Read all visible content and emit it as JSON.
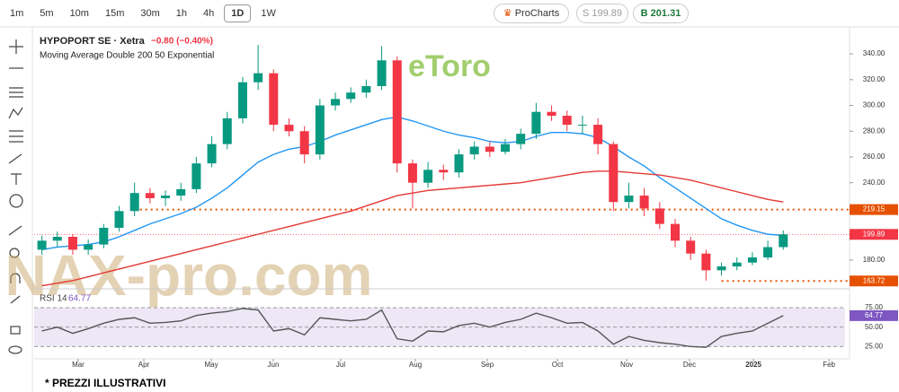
{
  "toolbar": {
    "intervals": [
      "1m",
      "5m",
      "10m",
      "15m",
      "30m",
      "1h",
      "4h",
      "1D",
      "1W"
    ],
    "active": 7,
    "procharts": "ProCharts",
    "sell": "S 199.89",
    "buy": "B 201.31"
  },
  "watermarks": [
    "eToro",
    "NAX-pro.com"
  ],
  "footer": "* PREZZI ILLUSTRATIVI",
  "chart_data": {
    "type": "candlestick",
    "title": "HYPOPORT SE · Xetra",
    "change": "−0.80 (−0.40%)",
    "indicator": "Moving Average Double 200 50 Exponential",
    "categories": [
      null,
      null,
      null,
      null,
      null,
      null,
      null,
      null,
      null,
      null,
      null,
      null,
      null,
      null,
      null,
      null,
      null,
      null,
      null,
      null,
      null,
      null,
      null,
      null,
      null,
      null,
      null,
      null,
      null,
      null,
      null,
      null,
      null,
      null,
      null,
      null,
      null,
      null,
      null,
      null,
      null,
      null,
      null,
      null,
      null,
      null,
      null,
      null,
      null
    ],
    "open": [
      188,
      195,
      198,
      188,
      192,
      205,
      218,
      232,
      228,
      230,
      235,
      255,
      270,
      290,
      318,
      325,
      285,
      280,
      262,
      300,
      305,
      310,
      315,
      335,
      255,
      240,
      250,
      248,
      262,
      268,
      264,
      270,
      278,
      295,
      292,
      285,
      285,
      270,
      225,
      230,
      220,
      208,
      195,
      185,
      172,
      175,
      178,
      182,
      190
    ],
    "high": [
      199,
      202,
      200,
      196,
      208,
      222,
      240,
      236,
      234,
      240,
      260,
      276,
      295,
      322,
      347,
      328,
      290,
      284,
      305,
      310,
      314,
      320,
      346,
      338,
      258,
      256,
      254,
      266,
      272,
      272,
      274,
      282,
      302,
      300,
      296,
      292,
      290,
      272,
      240,
      236,
      225,
      212,
      198,
      188,
      178,
      182,
      186,
      195,
      203
    ],
    "low": [
      184,
      190,
      184,
      184,
      189,
      202,
      214,
      224,
      222,
      226,
      232,
      252,
      266,
      286,
      312,
      280,
      276,
      255,
      258,
      296,
      302,
      306,
      312,
      248,
      220,
      236,
      242,
      244,
      258,
      260,
      262,
      266,
      274,
      288,
      280,
      278,
      262,
      218,
      220,
      214,
      204,
      190,
      180,
      164,
      168,
      172,
      176,
      180,
      188
    ],
    "close": [
      195,
      198,
      188,
      192,
      205,
      218,
      232,
      228,
      230,
      235,
      255,
      270,
      290,
      318,
      325,
      285,
      280,
      262,
      300,
      305,
      310,
      315,
      335,
      255,
      240,
      250,
      248,
      262,
      268,
      264,
      270,
      278,
      295,
      292,
      285,
      285,
      270,
      225,
      230,
      220,
      208,
      195,
      185,
      172,
      175,
      178,
      182,
      190,
      199.89
    ],
    "up_color": "#089981",
    "down_color": "#f23645",
    "series": [
      {
        "color": "#2196f3",
        "values": [
          188,
          190,
          191,
          192,
          194,
          198,
          203,
          208,
          212,
          216,
          221,
          228,
          236,
          246,
          256,
          262,
          266,
          268,
          272,
          277,
          281,
          285,
          289,
          291,
          288,
          284,
          280,
          277,
          275,
          272,
          271,
          272,
          276,
          279,
          279,
          278,
          275,
          268,
          260,
          253,
          244,
          236,
          228,
          220,
          212,
          207,
          203,
          200,
          199
        ]
      },
      {
        "color": "#e53935",
        "values": [
          160,
          162,
          164,
          167,
          170,
          173,
          176,
          179,
          182,
          185,
          188,
          191,
          194,
          197,
          200,
          203,
          206,
          209,
          212,
          215,
          218,
          222,
          226,
          230,
          232,
          234,
          235,
          236,
          237,
          238,
          239,
          240,
          242,
          244,
          246,
          248,
          249,
          249,
          248,
          247,
          246,
          244,
          242,
          239,
          236,
          233,
          230,
          227,
          225
        ]
      }
    ],
    "levels": [
      {
        "value": 219.15,
        "color": "#e65100"
      },
      {
        "value": 163.72,
        "color": "#e65100"
      }
    ],
    "last_price": {
      "value": 199.89,
      "color": "#f23645"
    },
    "ylim": [
      159,
      354
    ],
    "yticks": [
      {
        "value": 180,
        "label": "180.00"
      },
      {
        "value": 200,
        "label": "200.00"
      },
      {
        "value": 220,
        "label": "220.00"
      },
      {
        "value": 240,
        "label": "240.00"
      },
      {
        "value": 260,
        "label": "260.00"
      },
      {
        "value": 280,
        "label": "280.00"
      },
      {
        "value": 300,
        "label": "300.00"
      },
      {
        "value": 320,
        "label": "320.00"
      },
      {
        "value": 340,
        "label": "340.00"
      }
    ],
    "xlim": [
      -0.5,
      52
    ],
    "xticks": [
      {
        "value": 2.35,
        "label": "Mar"
      },
      {
        "value": 6.6,
        "label": "Apr"
      },
      {
        "value": 10.97,
        "label": "May"
      },
      {
        "value": 14.98,
        "label": "Jun"
      },
      {
        "value": 19.35,
        "label": "Jul"
      },
      {
        "value": 24.18,
        "label": "Aug"
      },
      {
        "value": 28.84,
        "label": "Sep"
      },
      {
        "value": 33.38,
        "label": "Oct"
      },
      {
        "value": 37.86,
        "label": "Nov"
      },
      {
        "value": 41.93,
        "label": "Dec"
      },
      {
        "value": 46.07,
        "label": "2025"
      },
      {
        "value": 50.96,
        "label": "Feb"
      }
    ],
    "rsi": {
      "label": "RSI 14",
      "value": 64.77,
      "color": "#555555",
      "band_color": "#ede7f6",
      "values": [
        45,
        50,
        42,
        48,
        55,
        60,
        62,
        55,
        56,
        58,
        65,
        68,
        70,
        74,
        72,
        45,
        48,
        40,
        62,
        60,
        58,
        60,
        72,
        35,
        32,
        45,
        44,
        52,
        55,
        50,
        56,
        60,
        68,
        62,
        55,
        56,
        45,
        28,
        38,
        33,
        30,
        28,
        25,
        24,
        38,
        42,
        45,
        55,
        64.77
      ],
      "ylim": [
        15,
        90
      ],
      "yticks": [
        {
          "value": 25,
          "label": "25.00"
        },
        {
          "value": 50,
          "label": "50.00"
        },
        {
          "value": 75,
          "label": "75.00"
        }
      ]
    }
  }
}
